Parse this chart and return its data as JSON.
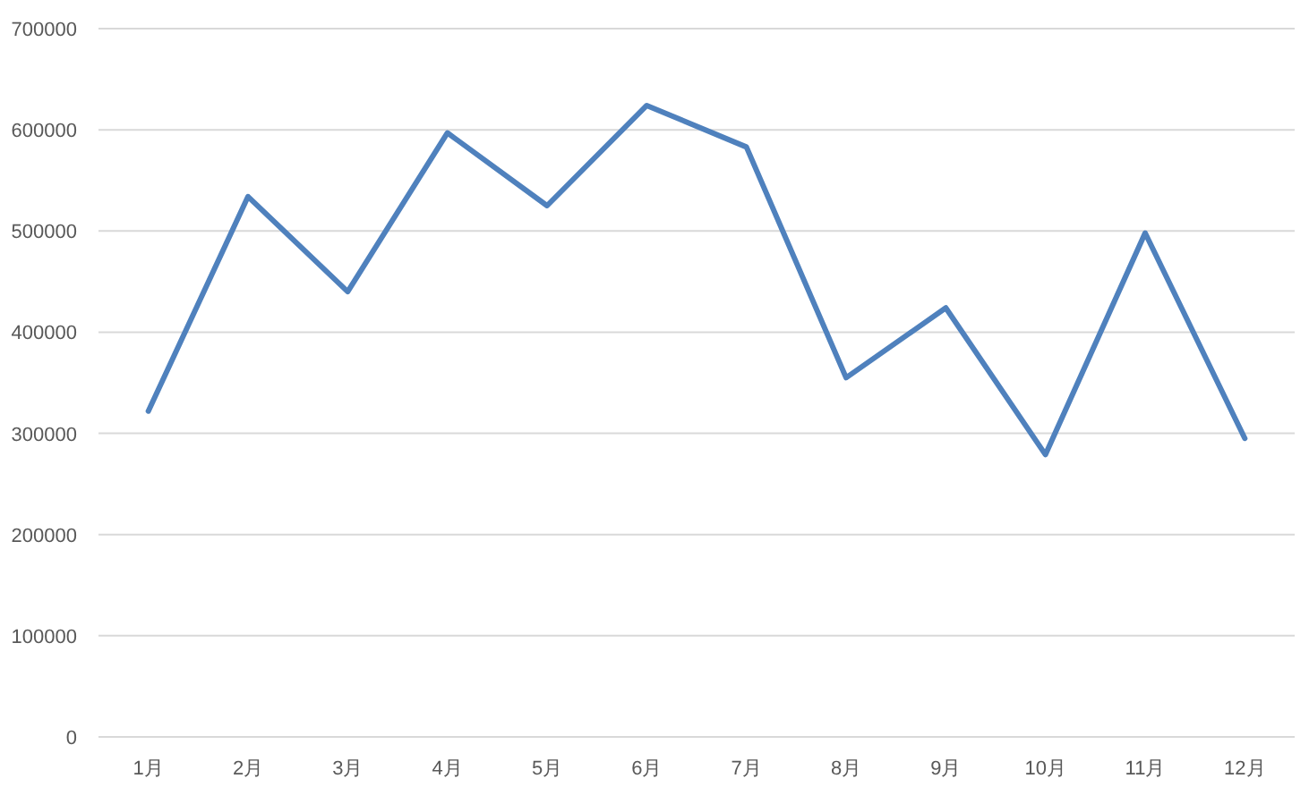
{
  "chart_data": {
    "type": "line",
    "categories": [
      "1月",
      "2月",
      "3月",
      "4月",
      "5月",
      "6月",
      "7月",
      "8月",
      "9月",
      "10月",
      "11月",
      "12月"
    ],
    "series": [
      {
        "color": "#4f81bd",
        "values": [
          322000,
          534000,
          440000,
          597000,
          525000,
          624000,
          583000,
          355000,
          424000,
          279000,
          498000,
          295000
        ]
      }
    ],
    "ylim": [
      0,
      700000
    ],
    "yticks": [
      0,
      100000,
      200000,
      300000,
      400000,
      500000,
      600000,
      700000
    ],
    "grid": "y",
    "marker": "none",
    "line_style": "solid"
  }
}
